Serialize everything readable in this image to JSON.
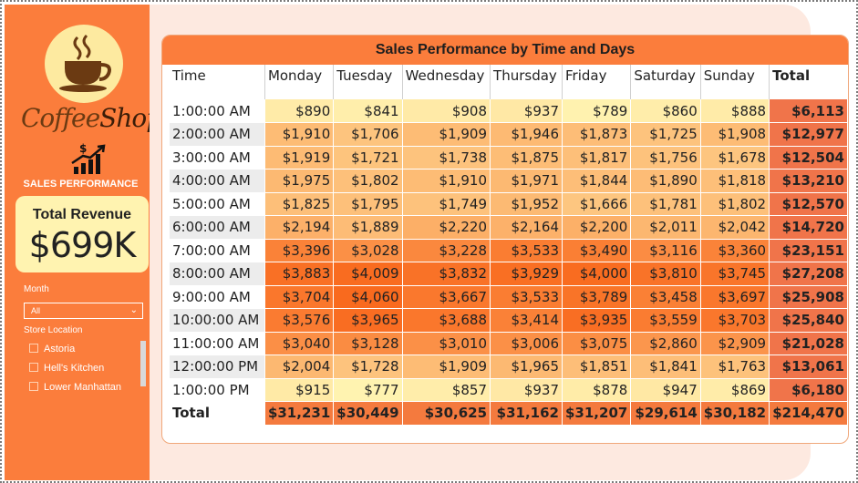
{
  "sidebar": {
    "logo_word1": "Coffee",
    "logo_word2": "Shop",
    "icon_name": "sales-chart-icon",
    "section_label": "SALES PERFORMANCE",
    "kpi_label": "Total Revenue",
    "kpi_value": "$699K",
    "month_label": "Month",
    "month_value": "All",
    "store_label": "Store Location",
    "locations": [
      "Astoria",
      "Hell's Kitchen",
      "Lower Manhattan"
    ]
  },
  "chart_data": {
    "type": "table",
    "title": "Sales Performance by Time and Days",
    "row_header": "Time",
    "columns": [
      "Monday",
      "Tuesday",
      "Wednesday",
      "Thursday",
      "Friday",
      "Saturday",
      "Sunday"
    ],
    "total_label": "Total",
    "rows": [
      {
        "time": "1:00:00 AM",
        "values": [
          890,
          841,
          908,
          937,
          789,
          860,
          888
        ],
        "total": 6113
      },
      {
        "time": "2:00:00 AM",
        "values": [
          1910,
          1706,
          1909,
          1946,
          1873,
          1725,
          1908
        ],
        "total": 12977
      },
      {
        "time": "3:00:00 AM",
        "values": [
          1919,
          1721,
          1738,
          1875,
          1817,
          1756,
          1678
        ],
        "total": 12504
      },
      {
        "time": "4:00:00 AM",
        "values": [
          1975,
          1802,
          1910,
          1971,
          1844,
          1890,
          1818
        ],
        "total": 13210
      },
      {
        "time": "5:00:00 AM",
        "values": [
          1825,
          1795,
          1749,
          1952,
          1666,
          1781,
          1802
        ],
        "total": 12570
      },
      {
        "time": "6:00:00 AM",
        "values": [
          2194,
          1889,
          2220,
          2164,
          2200,
          2011,
          2042
        ],
        "total": 14720
      },
      {
        "time": "7:00:00 AM",
        "values": [
          3396,
          3028,
          3228,
          3533,
          3490,
          3116,
          3360
        ],
        "total": 23151
      },
      {
        "time": "8:00:00 AM",
        "values": [
          3883,
          4009,
          3832,
          3929,
          4000,
          3810,
          3745
        ],
        "total": 27208
      },
      {
        "time": "9:00:00 AM",
        "values": [
          3704,
          4060,
          3667,
          3533,
          3789,
          3458,
          3697
        ],
        "total": 25908
      },
      {
        "time": "10:00:00 AM",
        "values": [
          3576,
          3965,
          3688,
          3414,
          3935,
          3559,
          3703
        ],
        "total": 25840
      },
      {
        "time": "11:00:00 AM",
        "values": [
          3040,
          3128,
          3010,
          3006,
          3075,
          2860,
          2909
        ],
        "total": 21028
      },
      {
        "time": "12:00:00 PM",
        "values": [
          2004,
          1728,
          1909,
          1965,
          1851,
          1841,
          1763
        ],
        "total": 13061
      },
      {
        "time": "1:00:00 PM",
        "values": [
          915,
          777,
          857,
          937,
          878,
          947,
          869
        ],
        "total": 6180
      }
    ],
    "column_totals": [
      31231,
      30449,
      30625,
      31162,
      31207,
      29614,
      30182
    ],
    "grand_total": 214470
  },
  "colors": {
    "accent": "#fb7d3c",
    "kpi_bg": "#fff3b0",
    "heat_low": "#fff3b0",
    "heat_high": "#f96a1e",
    "total_col": "#f0744a",
    "total_row": "#f47a3e"
  }
}
